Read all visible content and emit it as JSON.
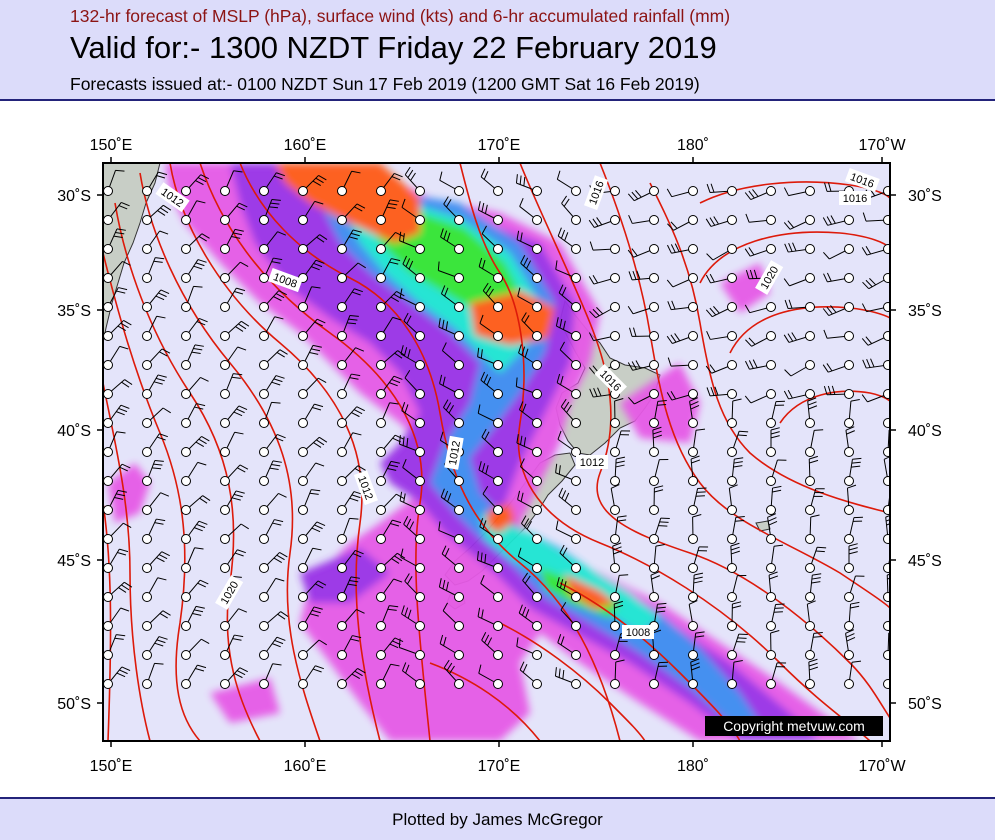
{
  "header": {
    "subtitle": "132-hr forecast of MSLP (hPa), surface wind (kts) and 6-hr accumulated rainfall (mm)",
    "title": "Valid for:- 1300 NZDT Friday 22 February 2019",
    "issued": "Forecasts issued at:- 0100 NZDT Sun 17 Feb 2019 (1200 GMT Sat 16 Feb 2019)"
  },
  "map": {
    "lon_labels": [
      "150˚E",
      "160˚E",
      "170˚E",
      "180˚",
      "170˚W"
    ],
    "lat_labels": [
      "30˚S",
      "35˚S",
      "40˚S",
      "45˚S",
      "50˚S"
    ],
    "isobar_labels": [
      {
        "text": "1012"
      },
      {
        "text": "1008"
      },
      {
        "text": "1012"
      },
      {
        "text": "1016"
      },
      {
        "text": "1020"
      },
      {
        "text": "1016"
      },
      {
        "text": "1016"
      },
      {
        "text": "1012"
      },
      {
        "text": "1012"
      },
      {
        "text": "1016"
      },
      {
        "text": "1020"
      },
      {
        "text": "1008"
      }
    ],
    "copyright": "Copyright metvuw.com",
    "colors": {
      "ocean": "#e4e4fa",
      "land": "#c8cec6",
      "isobar": "#dd1a0a",
      "rain_light": "#e65ae6",
      "rain_mid": "#9a30e6",
      "rain_heavy": "#3c8cf0",
      "rain_heavier": "#1ee6d2",
      "rain_strong": "#32e632",
      "rain_extreme": "#ff5a14"
    }
  },
  "footer": {
    "credit": "Plotted by James McGregor"
  }
}
